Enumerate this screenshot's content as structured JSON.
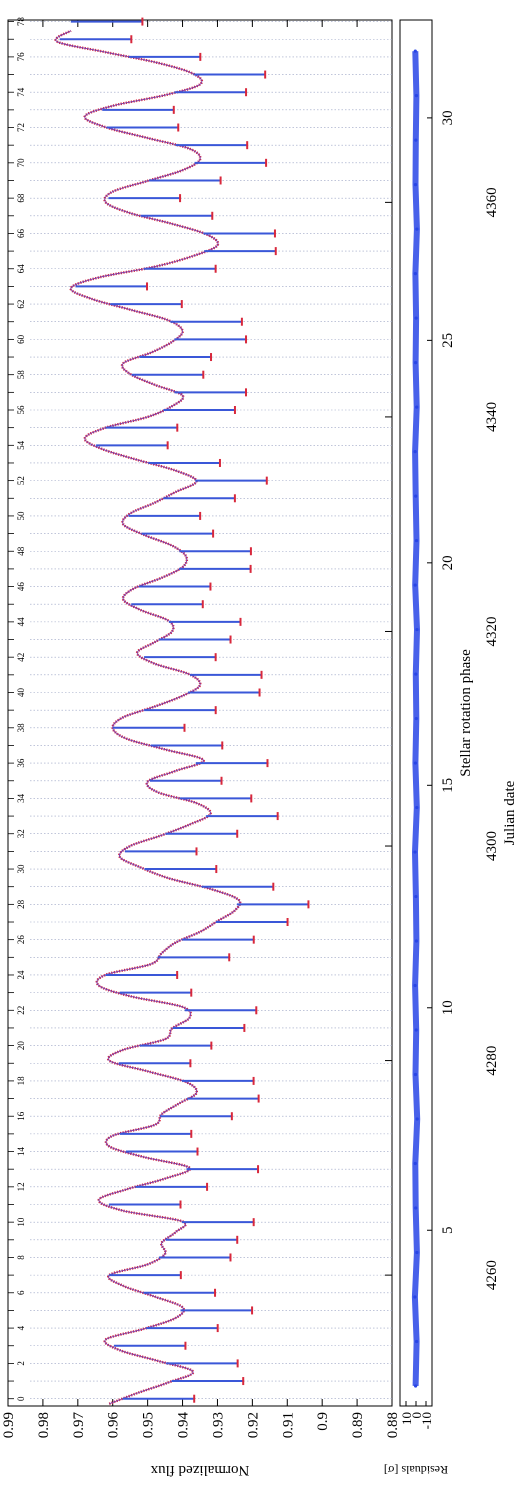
{
  "chart_data": [
    {
      "type": "line",
      "panel": "light-curve",
      "title": "",
      "top_xlabel": "Julian date",
      "ylabel": "Normalized flux",
      "top_xticks": [
        4260,
        4280,
        4300,
        4320,
        4340,
        4360
      ],
      "top_xlim": [
        4247.8,
        4377.0
      ],
      "ylim": [
        0.88,
        0.99
      ],
      "yticks": [
        0.88,
        0.89,
        0.9,
        0.91,
        0.92,
        0.93,
        0.94,
        0.95,
        0.96,
        0.97,
        0.98,
        0.99
      ],
      "ytick_labels": [
        "0.88",
        "0.89",
        "0.9",
        "0.91",
        "0.92",
        "0.93",
        "0.94",
        "0.95",
        "0.96",
        "0.97",
        "0.98",
        "0.99"
      ],
      "transit_numbers": [
        "0",
        "1",
        "2",
        "3",
        "4",
        "5",
        "6",
        "7",
        "8",
        "9",
        "10",
        "11",
        "12",
        "13",
        "14",
        "15",
        "16",
        "17",
        "18",
        "19",
        "20",
        "21",
        "22",
        "23",
        "24",
        "25",
        "26",
        "27",
        "28",
        "29",
        "30",
        "31",
        "32",
        "33",
        "34",
        "35",
        "36",
        "37",
        "38",
        "39",
        "40",
        "41",
        "42",
        "43",
        "44",
        "45",
        "46",
        "47",
        "48",
        "49",
        "50",
        "51",
        "52",
        "53",
        "54",
        "55",
        "56",
        "57",
        "58",
        "59",
        "60",
        "61",
        "62",
        "63",
        "64",
        "65",
        "66",
        "67",
        "68",
        "69",
        "70",
        "71",
        "72",
        "73",
        "74",
        "75",
        "76",
        "77",
        "78"
      ],
      "transit_epoch_jd": 4248.48,
      "transit_period_days": 1.6458,
      "transit_ticks_labeled": "even numbers only",
      "series": [
        {
          "role": "observed",
          "color": "#d8283c",
          "x": [
            4248.0,
            4249.0,
            4250.0,
            4251.0,
            4252.0,
            4253.0,
            4254.0,
            4255.0,
            4256.0,
            4257.0,
            4258.0,
            4259.0,
            4260.0,
            4261.0,
            4262.0,
            4263.0,
            4264.0,
            4265.0,
            4266.0,
            4267.0,
            4268.0,
            4269.0,
            4270.0,
            4271.0,
            4272.0,
            4273.0,
            4274.0,
            4275.0,
            4276.0,
            4277.0,
            4278.0,
            4279.0,
            4280.0,
            4281.0,
            4282.0,
            4283.0,
            4284.0,
            4285.0,
            4286.0,
            4287.0,
            4288.0,
            4289.0,
            4290.0,
            4291.0,
            4292.0,
            4293.0,
            4294.0,
            4295.0,
            4296.0,
            4297.0,
            4298.0,
            4299.0,
            4300.0,
            4301.0,
            4302.0,
            4303.0,
            4304.0,
            4305.0,
            4306.0,
            4307.0,
            4308.0,
            4309.0,
            4310.0,
            4311.0,
            4312.0,
            4313.0,
            4314.0,
            4315.0,
            4316.0,
            4317.0,
            4318.0,
            4319.0,
            4320.0,
            4321.0,
            4322.0,
            4323.0,
            4324.0,
            4325.0,
            4326.0,
            4327.0,
            4328.0,
            4329.0,
            4330.0,
            4331.0,
            4332.0,
            4333.0,
            4334.0,
            4335.0,
            4336.0,
            4337.0,
            4338.0,
            4339.0,
            4340.0,
            4341.0,
            4342.0,
            4343.0,
            4344.0,
            4345.0,
            4346.0,
            4347.0,
            4348.0,
            4349.0,
            4350.0,
            4351.0,
            4352.0,
            4353.0,
            4354.0,
            4355.0,
            4356.0,
            4357.0,
            4358.0,
            4359.0,
            4360.0,
            4361.0,
            4362.0,
            4363.0,
            4364.0,
            4365.0,
            4366.0,
            4367.0,
            4368.0,
            4369.0,
            4370.0,
            4371.0,
            4372.0,
            4373.0,
            4374.0,
            4375.0,
            4376.0
          ],
          "y": [
            0.961,
            0.953,
            0.944,
            0.937,
            0.947,
            0.958,
            0.962,
            0.951,
            0.942,
            0.94,
            0.948,
            0.957,
            0.961,
            0.95,
            0.945,
            0.946,
            0.942,
            0.94,
            0.957,
            0.964,
            0.956,
            0.945,
            0.938,
            0.951,
            0.961,
            0.96,
            0.948,
            0.946,
            0.941,
            0.936,
            0.939,
            0.95,
            0.961,
            0.957,
            0.945,
            0.943,
            0.938,
            0.94,
            0.955,
            0.964,
            0.962,
            0.949,
            0.946,
            0.942,
            0.935,
            0.93,
            0.925,
            0.924,
            0.932,
            0.944,
            0.952,
            0.958,
            0.955,
            0.946,
            0.938,
            0.932,
            0.936,
            0.947,
            0.95,
            0.942,
            0.934,
            0.945,
            0.956,
            0.96,
            0.957,
            0.948,
            0.94,
            0.935,
            0.938,
            0.948,
            0.953,
            0.948,
            0.943,
            0.944,
            0.952,
            0.957,
            0.954,
            0.946,
            0.94,
            0.939,
            0.943,
            0.951,
            0.957,
            0.955,
            0.948,
            0.942,
            0.936,
            0.942,
            0.953,
            0.963,
            0.968,
            0.962,
            0.95,
            0.943,
            0.94,
            0.948,
            0.955,
            0.957,
            0.949,
            0.943,
            0.94,
            0.944,
            0.955,
            0.966,
            0.972,
            0.964,
            0.948,
            0.937,
            0.93,
            0.933,
            0.943,
            0.955,
            0.962,
            0.96,
            0.95,
            0.94,
            0.935,
            0.938,
            0.95,
            0.962,
            0.968,
            0.96,
            0.945,
            0.935,
            0.937,
            0.947,
            0.962,
            0.976,
            0.972
          ]
        },
        {
          "role": "model",
          "color": "#3a57d8",
          "transit_depth": 0.0205
        }
      ]
    },
    {
      "type": "scatter",
      "panel": "residuals",
      "title": "",
      "xlabel": "Stellar rotation phase",
      "ylabel": "Residuals [σ]",
      "xticks": [
        5,
        10,
        15,
        20,
        25,
        30
      ],
      "xlim": [
        1.05,
        32.2
      ],
      "yticks": [
        10,
        0,
        -10
      ],
      "ytick_labels": [
        "10",
        "0",
        "-10"
      ],
      "ylim": [
        -16,
        16
      ],
      "color": "#2845e6",
      "series": [
        {
          "x": [
            1.5,
            2.5,
            3.5,
            4.5,
            5.5,
            6.5,
            7.5,
            8.5,
            9.5,
            10.5,
            11.5,
            12.5,
            13.5,
            14.5,
            15.5,
            16.5,
            17.5,
            18.5,
            19.5,
            20.5,
            21.5,
            22.5,
            23.5,
            24.5,
            25.5,
            26.5,
            27.5,
            28.5,
            29.5,
            30.5,
            31.5
          ],
          "y": [
            0.4,
            -0.6,
            1.1,
            -0.9,
            0.3,
            0.7,
            -1.2,
            0.5,
            -0.2,
            0.9,
            -0.4,
            0.1,
            1.0,
            -0.8,
            0.6,
            -0.3,
            0.2,
            -1.0,
            0.8,
            -0.5,
            0.3,
            0.9,
            -0.7,
            0.4,
            -0.1,
            0.6,
            -0.9,
            0.5,
            0.2,
            -0.4,
            0.7
          ]
        }
      ]
    }
  ]
}
